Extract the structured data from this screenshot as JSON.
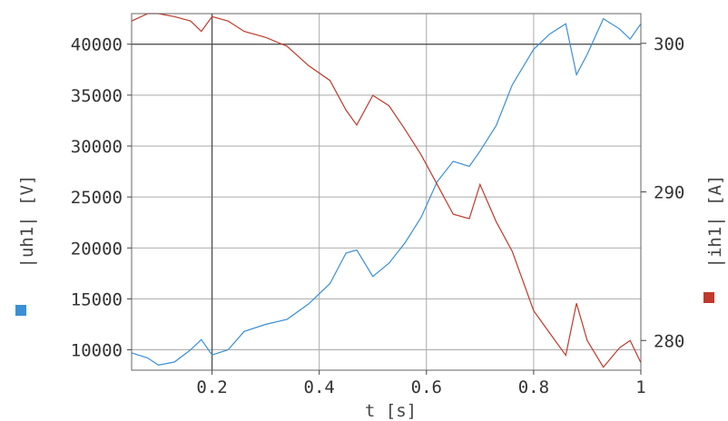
{
  "chart_data": {
    "type": "line",
    "xlabel": "t [s]",
    "ylabel_left": "|uh1| [V]",
    "ylabel_right": "|ih1| [A]",
    "xlim": [
      0.05,
      1.0
    ],
    "ylim_left": [
      8000,
      43000
    ],
    "ylim_right": [
      278,
      302
    ],
    "x_ticks": [
      0.2,
      0.4,
      0.6,
      0.8,
      1
    ],
    "x_tick_labels": [
      "0.2",
      "0.4",
      "0.6",
      "0.8",
      "1"
    ],
    "y_left_ticks": [
      10000,
      15000,
      20000,
      25000,
      30000,
      35000,
      40000
    ],
    "y_left_tick_labels": [
      "10000",
      "15000",
      "20000",
      "25000",
      "30000",
      "35000",
      "40000"
    ],
    "y_right_ticks": [
      280,
      290,
      300
    ],
    "y_right_tick_labels": [
      "280",
      "290",
      "300"
    ],
    "grid": true,
    "reference_lines": {
      "x": 0.2,
      "y_left": 40000
    },
    "colors": {
      "uh1": "#3a8fd6",
      "ih1": "#c0392b",
      "grid": "#aaaaaa",
      "ref": "#555555"
    },
    "series": [
      {
        "name": "|uh1| [V]",
        "axis": "left",
        "x": [
          0.05,
          0.08,
          0.1,
          0.13,
          0.16,
          0.18,
          0.2,
          0.23,
          0.26,
          0.3,
          0.34,
          0.38,
          0.42,
          0.45,
          0.47,
          0.5,
          0.53,
          0.56,
          0.59,
          0.62,
          0.65,
          0.68,
          0.7,
          0.73,
          0.76,
          0.8,
          0.83,
          0.86,
          0.88,
          0.9,
          0.93,
          0.96,
          0.98,
          1.0
        ],
        "values": [
          9700,
          9200,
          8500,
          8800,
          10000,
          11000,
          9500,
          10000,
          11800,
          12500,
          13000,
          14500,
          16500,
          19500,
          19800,
          17200,
          18500,
          20500,
          23000,
          26500,
          28500,
          28000,
          29500,
          32000,
          36000,
          39500,
          41000,
          42000,
          37000,
          39000,
          42500,
          41500,
          40500,
          42000
        ]
      },
      {
        "name": "|ih1| [A]",
        "axis": "right",
        "x": [
          0.05,
          0.08,
          0.1,
          0.13,
          0.16,
          0.18,
          0.2,
          0.23,
          0.26,
          0.3,
          0.34,
          0.38,
          0.42,
          0.45,
          0.47,
          0.5,
          0.53,
          0.56,
          0.59,
          0.62,
          0.65,
          0.68,
          0.7,
          0.73,
          0.76,
          0.8,
          0.83,
          0.86,
          0.88,
          0.9,
          0.93,
          0.96,
          0.98,
          1.0
        ],
        "values": [
          301.5,
          302.0,
          302.0,
          301.8,
          301.5,
          300.8,
          301.8,
          301.5,
          300.8,
          300.4,
          299.8,
          298.5,
          297.5,
          295.5,
          294.5,
          296.5,
          295.8,
          294.2,
          292.5,
          290.5,
          288.5,
          288.2,
          290.5,
          288.0,
          286.0,
          282.0,
          280.5,
          279.0,
          282.5,
          280.0,
          278.2,
          279.5,
          280.0,
          278.5
        ]
      }
    ]
  }
}
